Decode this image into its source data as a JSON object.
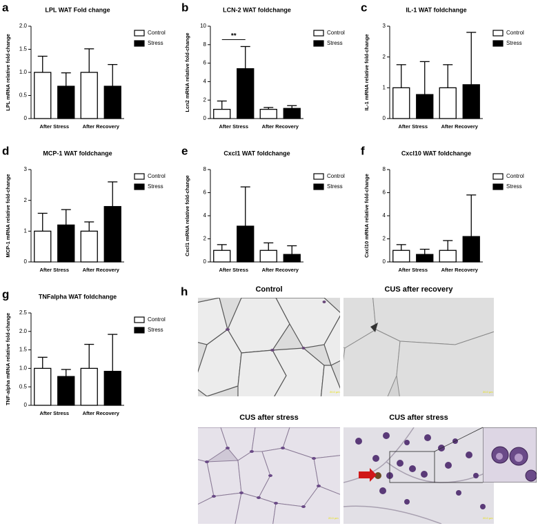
{
  "chart_data": [
    {
      "panel": "a",
      "type": "bar",
      "title": "LPL WAT Fold change",
      "y_label": "LPL mRNA relative fold-change",
      "categories": [
        "After Stress",
        "After Recovery"
      ],
      "series": [
        {
          "name": "Control",
          "color": "#ffffff",
          "values": [
            1.0,
            1.0
          ],
          "errors": [
            0.35,
            0.51
          ]
        },
        {
          "name": "Stress",
          "color": "#000000",
          "values": [
            0.7,
            0.7
          ],
          "errors": [
            0.29,
            0.47
          ]
        }
      ],
      "ylim": [
        0,
        2
      ],
      "yticks": [
        0,
        0.5,
        {
          "value": 1,
          "label": "1.0"
        },
        1.5,
        {
          "value": 2,
          "label": "2.0"
        }
      ],
      "legend": "upper right"
    },
    {
      "panel": "b",
      "type": "bar",
      "title": "LCN-2 WAT foldchange",
      "y_label": "Lcn2 mRNA relative fold-change",
      "categories": [
        "After Stress",
        "After Recovery"
      ],
      "series": [
        {
          "name": "Control",
          "color": "#ffffff",
          "values": [
            1.0,
            1.0
          ],
          "errors": [
            0.9,
            0.2
          ]
        },
        {
          "name": "Stress",
          "color": "#000000",
          "values": [
            5.4,
            1.1
          ],
          "errors": [
            2.4,
            0.3
          ]
        }
      ],
      "ylim": [
        0,
        10
      ],
      "yticks": [
        0,
        2,
        4,
        6,
        8,
        10
      ],
      "legend": "upper right",
      "annotation": "**"
    },
    {
      "panel": "c",
      "type": "bar",
      "title": "IL-1 WAT foldchange",
      "y_label": "IL-1 mRNA relative fold-change",
      "categories": [
        "After Stress",
        "After Recovery"
      ],
      "series": [
        {
          "name": "Control",
          "color": "#ffffff",
          "values": [
            1.0,
            1.0
          ],
          "errors": [
            0.75,
            0.75
          ]
        },
        {
          "name": "Stress",
          "color": "#000000",
          "values": [
            0.78,
            1.1
          ],
          "errors": [
            1.07,
            1.7
          ]
        }
      ],
      "ylim": [
        0,
        3
      ],
      "yticks": [
        0,
        1,
        2,
        3
      ],
      "legend": "upper right"
    },
    {
      "panel": "d",
      "type": "bar",
      "title": "MCP-1 WAT foldchange",
      "y_label": "MCP-1 mRNA relative fold-change",
      "categories": [
        "After Stress",
        "After Recovery"
      ],
      "series": [
        {
          "name": "Control",
          "color": "#ffffff",
          "values": [
            1.0,
            1.0
          ],
          "errors": [
            0.58,
            0.3
          ]
        },
        {
          "name": "Stress",
          "color": "#000000",
          "values": [
            1.2,
            1.8
          ],
          "errors": [
            0.5,
            0.8
          ]
        }
      ],
      "ylim": [
        0,
        3
      ],
      "yticks": [
        0,
        1,
        2,
        3
      ],
      "legend": "upper right"
    },
    {
      "panel": "e",
      "type": "bar",
      "title": "Cxcl1 WAT foldchange",
      "y_label": "Cxcl1 mRNA relative fold-change",
      "categories": [
        "After Stress",
        "After Recovery"
      ],
      "series": [
        {
          "name": "Control",
          "color": "#ffffff",
          "values": [
            1.0,
            1.0
          ],
          "errors": [
            0.5,
            0.65
          ]
        },
        {
          "name": "Stress",
          "color": "#000000",
          "values": [
            3.1,
            0.65
          ],
          "errors": [
            3.4,
            0.75
          ]
        }
      ],
      "ylim": [
        0,
        8
      ],
      "yticks": [
        0,
        2,
        4,
        6,
        8
      ],
      "legend": "upper right"
    },
    {
      "panel": "f",
      "type": "bar",
      "title": "Cxcl10 WAT foldchange",
      "y_label": "Cxcl10 mRNA relative fold-change",
      "categories": [
        "After Stress",
        "After Recovery"
      ],
      "series": [
        {
          "name": "Control",
          "color": "#ffffff",
          "values": [
            1.0,
            1.0
          ],
          "errors": [
            0.5,
            0.85
          ]
        },
        {
          "name": "Stress",
          "color": "#000000",
          "values": [
            0.65,
            2.2
          ],
          "errors": [
            0.45,
            3.6
          ]
        }
      ],
      "ylim": [
        0,
        8
      ],
      "yticks": [
        0,
        2,
        4,
        6,
        8
      ],
      "legend": "upper right"
    },
    {
      "panel": "g",
      "type": "bar",
      "title": "TNFalpha WAT foldchange",
      "y_label": "TNF-alpha mRNA relative fold-change",
      "categories": [
        "After Stress",
        "After Recovery"
      ],
      "series": [
        {
          "name": "Control",
          "color": "#ffffff",
          "values": [
            1.0,
            1.0
          ],
          "errors": [
            0.3,
            0.65
          ]
        },
        {
          "name": "Stress",
          "color": "#000000",
          "values": [
            0.78,
            0.92
          ],
          "errors": [
            0.19,
            1.0
          ]
        }
      ],
      "ylim": [
        0,
        2.5
      ],
      "yticks": [
        0,
        0.5,
        {
          "value": 1,
          "label": "1.0"
        },
        1.5,
        {
          "value": 2,
          "label": "2.0"
        },
        2.5
      ],
      "legend": "upper right"
    }
  ],
  "micrographs": {
    "panel": "h",
    "images": [
      {
        "title": "Control",
        "scale_bar": "20.0 µm"
      },
      {
        "title": "CUS after recovery",
        "scale_bar": "20.0 µm"
      },
      {
        "title": "CUS after stress",
        "scale_bar": "20.0 µm"
      },
      {
        "title": "CUS after stress",
        "scale_bar": "20.0 µm"
      }
    ]
  }
}
